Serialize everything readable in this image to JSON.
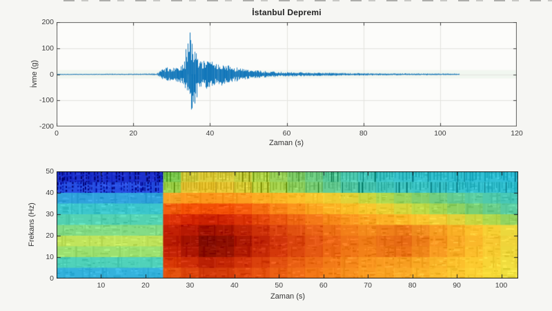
{
  "figure": {
    "background": "#f6f6f3",
    "top_edge_dashes": "cropped-dark-dash-strip"
  },
  "chart_data": [
    {
      "type": "line",
      "title": "İstanbul Depremi",
      "xlabel": "Zaman (s)",
      "ylabel": "İvme (g)",
      "xlim": [
        0,
        120
      ],
      "ylim": [
        -200,
        200
      ],
      "xticks": [
        0,
        20,
        40,
        60,
        80,
        100,
        120
      ],
      "yticks": [
        200,
        100,
        0,
        -100,
        -200
      ],
      "grid": true,
      "legend": "none",
      "line_color": "#0a72b8",
      "signal_end_s": 105,
      "burst_start_s": 27,
      "peak_positive_g": 160,
      "peak_negative_g": -130,
      "noise_envelope_g": [
        [
          0,
          1.5
        ],
        [
          10,
          1.8
        ],
        [
          20,
          2.2
        ],
        [
          26,
          2.8
        ],
        [
          27,
          14
        ],
        [
          28,
          24
        ],
        [
          29,
          27
        ],
        [
          30,
          24
        ],
        [
          31,
          28
        ],
        [
          32,
          31
        ],
        [
          33,
          40
        ],
        [
          34,
          75
        ],
        [
          34.8,
          150
        ],
        [
          35.4,
          125
        ],
        [
          36,
          90
        ],
        [
          37,
          66
        ],
        [
          38,
          56
        ],
        [
          39,
          60
        ],
        [
          40,
          48
        ],
        [
          41,
          52
        ],
        [
          42,
          40
        ],
        [
          43,
          44
        ],
        [
          44,
          33
        ],
        [
          45,
          34
        ],
        [
          46,
          26
        ],
        [
          47,
          28
        ],
        [
          48,
          22
        ],
        [
          50,
          18
        ],
        [
          52,
          15
        ],
        [
          54,
          13
        ],
        [
          56,
          11
        ],
        [
          58,
          10
        ],
        [
          60,
          9
        ],
        [
          63,
          8
        ],
        [
          66,
          7
        ],
        [
          70,
          6
        ],
        [
          75,
          5
        ],
        [
          80,
          4.5
        ],
        [
          85,
          4
        ],
        [
          90,
          3.5
        ],
        [
          95,
          3
        ],
        [
          100,
          2.8
        ],
        [
          105,
          2.5
        ]
      ],
      "peak_events": [
        {
          "t": 34.8,
          "g": 160
        },
        {
          "t": 35.3,
          "g": -130
        },
        {
          "t": 34.2,
          "g": 118
        },
        {
          "t": 35.9,
          "g": -112
        },
        {
          "t": 33.6,
          "g": 96
        },
        {
          "t": 36.5,
          "g": -88
        }
      ]
    },
    {
      "type": "heatmap",
      "title": "",
      "xlabel": "Zaman (s)",
      "ylabel": "Frekans (Hz)",
      "xlim": [
        0,
        103.8
      ],
      "ylim": [
        0,
        50
      ],
      "xticks": [
        10,
        20,
        30,
        40,
        50,
        60,
        70,
        80,
        90,
        100
      ],
      "yticks": [
        0,
        10,
        20,
        30,
        40,
        50
      ],
      "grid": false,
      "col_duration_s": 4,
      "row_height_hz": 5,
      "row_order": "top-50Hz-to-bottom-0Hz",
      "transition_time_s": 24.7,
      "stripe_rows": [
        0,
        1
      ],
      "grid_colors": [
        [
          "#1c30cc",
          "#1c30cc",
          "#1c30cc",
          "#1c30cc",
          "#1c30cc",
          "#1c30cc",
          "#7ac84e",
          "#d2cc3c",
          "#e0ce3c",
          "#dcd040",
          "#ccd444",
          "#b4d84e",
          "#9cd45c",
          "#84d06c",
          "#70ce84",
          "#5ccc9c",
          "#4ecab0",
          "#46c8bc",
          "#3ec6c6",
          "#3ac4cc",
          "#38c4ce",
          "#36c2d0",
          "#34c2d2",
          "#32c0d4",
          "#32c0d4",
          "#30bed6"
        ],
        [
          "#2850e4",
          "#2850e4",
          "#2850e4",
          "#2850e4",
          "#2850e4",
          "#2850e4",
          "#9ed24a",
          "#e4c434",
          "#eec834",
          "#ecca38",
          "#e0d23c",
          "#c8da46",
          "#acd852",
          "#92d462",
          "#7cd078",
          "#66cc92",
          "#56caa6",
          "#4cc8b4",
          "#46c8bc",
          "#42c6c2",
          "#3ec6c6",
          "#3cc4ca",
          "#38c4ce",
          "#36c2d0",
          "#36c2d0",
          "#34c2d2"
        ],
        [
          "#30a2dc",
          "#30a2dc",
          "#30a2dc",
          "#30a2dc",
          "#30a2dc",
          "#30a2dc",
          "#f6a226",
          "#fc9a1e",
          "#fc961c",
          "#fc981c",
          "#fc9e20",
          "#fcaa22",
          "#fcb426",
          "#fcbe2a",
          "#f8c62e",
          "#f0cc32",
          "#e2d238",
          "#ccd840",
          "#b0d84e",
          "#98d45e",
          "#84d06c",
          "#72ce80",
          "#64cc92",
          "#5acca0",
          "#50caac",
          "#48c8b6"
        ],
        [
          "#3cc6cc",
          "#3cc6cc",
          "#3cc6cc",
          "#3cc6cc",
          "#3cc6cc",
          "#3cc6cc",
          "#f25c0e",
          "#f65408",
          "#f25006",
          "#f45208",
          "#f65c0e",
          "#f87014",
          "#fa8418",
          "#fc941c",
          "#fca420",
          "#fcb224",
          "#fcbe28",
          "#f8c82e",
          "#ecd034",
          "#d8d83e",
          "#c0dc48",
          "#a6d854",
          "#8ed262",
          "#7ad074",
          "#68cc88",
          "#5acca0"
        ],
        [
          "#54d2b2",
          "#54d2b2",
          "#54d2b2",
          "#54d2b2",
          "#54d2b2",
          "#54d2b2",
          "#da3006",
          "#d62804",
          "#cc2202",
          "#d02604",
          "#da3206",
          "#e4460a",
          "#ec5810",
          "#f06814",
          "#f47818",
          "#f8881a",
          "#fa961e",
          "#fca422",
          "#fcb026",
          "#fcba28",
          "#fac42e",
          "#f2cc34",
          "#e4d23a",
          "#ccd842",
          "#b0d84e",
          "#94d460"
        ],
        [
          "#84dc86",
          "#84dc86",
          "#84dc86",
          "#84dc86",
          "#84dc86",
          "#84dc86",
          "#c22004",
          "#b61802",
          "#a01200",
          "#a81600",
          "#bc2204",
          "#cc3008",
          "#d8400c",
          "#e05010",
          "#e86014",
          "#ee7016",
          "#f27e18",
          "#f48a1c",
          "#f0801a",
          "#ec7a18",
          "#f08c1e",
          "#f89e22",
          "#fab026",
          "#fcc02c",
          "#f8d034",
          "#ecd83c"
        ],
        [
          "#c0e45c",
          "#c0e45c",
          "#c0e45c",
          "#c0e45c",
          "#c0e45c",
          "#c0e45c",
          "#b81c02",
          "#a21200",
          "#820a00",
          "#8c0e00",
          "#aa1802",
          "#c02406",
          "#d0340a",
          "#da440e",
          "#e25412",
          "#ea6414",
          "#ee7216",
          "#f07c18",
          "#ea7016",
          "#e66a14",
          "#ee7e1a",
          "#f6941e",
          "#f8a824",
          "#fab82a",
          "#f8c832",
          "#f0d43a"
        ],
        [
          "#9ce070",
          "#9ce070",
          "#9ce070",
          "#9ce070",
          "#9ce070",
          "#9ce070",
          "#c42406",
          "#ac1602",
          "#8e1000",
          "#981402",
          "#b41e04",
          "#c62a06",
          "#d4380a",
          "#dc480e",
          "#e45812",
          "#ec6814",
          "#f07616",
          "#f28018",
          "#ee7818",
          "#ec7416",
          "#f2881c",
          "#f89c22",
          "#faae26",
          "#fcbe2c",
          "#f8cc32",
          "#eed63a"
        ],
        [
          "#50d2ba",
          "#50d2ba",
          "#50d2ba",
          "#50d2ba",
          "#50d2ba",
          "#50d2ba",
          "#da3a08",
          "#cc2c06",
          "#ba2004",
          "#c22604",
          "#d03208",
          "#da400c",
          "#e25010",
          "#e85e12",
          "#ee6c16",
          "#f27a18",
          "#f6881c",
          "#f8941e",
          "#f89a20",
          "#f89e22",
          "#faa824",
          "#fab428",
          "#fcc02c",
          "#fcca30",
          "#f8d436",
          "#f0dc3e"
        ],
        [
          "#34b2dc",
          "#34b2dc",
          "#34b2dc",
          "#34b2dc",
          "#34b2dc",
          "#34b2dc",
          "#e65410",
          "#dc440c",
          "#d03808",
          "#d43c0a",
          "#de460c",
          "#e65210",
          "#ec6014",
          "#f06c16",
          "#f47818",
          "#f6841a",
          "#f8901e",
          "#fa9a20",
          "#faa222",
          "#faa826",
          "#fcb228",
          "#fcbc2c",
          "#fcc630",
          "#fcd034",
          "#f8da38",
          "#f0e040"
        ]
      ]
    }
  ]
}
